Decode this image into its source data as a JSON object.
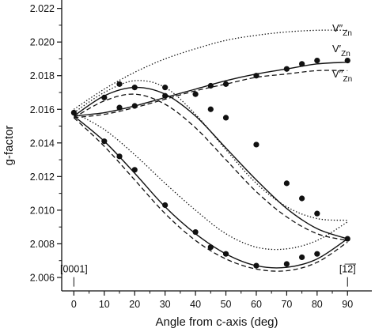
{
  "chart_data": {
    "type": "line",
    "title": "",
    "xlabel": "Angle from c-axis (deg)",
    "ylabel": "g-factor",
    "xlim": [
      -4,
      98
    ],
    "ylim": [
      2.0052,
      2.0225
    ],
    "x_ticks": [
      0,
      10,
      20,
      30,
      40,
      50,
      60,
      70,
      80,
      90
    ],
    "y_ticks": [
      2.006,
      2.008,
      2.01,
      2.012,
      2.014,
      2.016,
      2.018,
      2.02,
      2.022
    ],
    "y_tick_labels": [
      "2.006",
      "2.008",
      "2.010",
      "2.012",
      "2.014",
      "2.016",
      "2.018",
      "2.020",
      "2.022"
    ],
    "grid": false,
    "colors": {
      "line": "#111111",
      "background": "#ffffff"
    },
    "annotations": [
      {
        "text": "[0001]",
        "x": 0,
        "y": 2.0063
      },
      {
        "text": "[1̅2̅̅]",
        "x": 90,
        "y": 2.0063
      }
    ],
    "series": [
      {
        "name": "V″Zn",
        "style": "dotted",
        "branches": [
          {
            "x": [
              0,
              10,
              20,
              30,
              40,
              50,
              60,
              70,
              80,
              90
            ],
            "y": [
              2.016,
              2.0172,
              2.0182,
              2.019,
              2.0196,
              2.0201,
              2.0204,
              2.0206,
              2.0207,
              2.0207
            ]
          },
          {
            "x": [
              0,
              10,
              20,
              30,
              40,
              50,
              60,
              70,
              80,
              90
            ],
            "y": [
              2.0158,
              2.017,
              2.0177,
              2.0173,
              2.0157,
              2.0136,
              2.0116,
              2.0102,
              2.0095,
              2.0094
            ]
          },
          {
            "x": [
              0,
              10,
              20,
              30,
              40,
              50,
              60,
              70,
              80,
              90
            ],
            "y": [
              2.0158,
              2.0148,
              2.0133,
              2.0116,
              2.01,
              2.0086,
              2.0078,
              2.0077,
              2.0082,
              2.0093
            ]
          }
        ]
      },
      {
        "name": "V′Zn",
        "style": "solid",
        "branches": [
          {
            "x": [
              0,
              10,
              20,
              30,
              40,
              50,
              60,
              70,
              80,
              90
            ],
            "y": [
              2.0156,
              2.0158,
              2.0162,
              2.0167,
              2.0172,
              2.0177,
              2.0181,
              2.0184,
              2.0187,
              2.0188
            ]
          },
          {
            "x": [
              0,
              10,
              20,
              30,
              40,
              50,
              60,
              70,
              80,
              90
            ],
            "y": [
              2.0156,
              2.0168,
              2.0173,
              2.0169,
              2.0156,
              2.0137,
              2.0118,
              2.0101,
              2.0089,
              2.0083
            ]
          },
          {
            "x": [
              0,
              10,
              20,
              30,
              40,
              50,
              60,
              70,
              80,
              90
            ],
            "y": [
              2.0156,
              2.0141,
              2.0122,
              2.0102,
              2.0086,
              2.0074,
              2.0067,
              2.0066,
              2.0071,
              2.0083
            ]
          }
        ]
      },
      {
        "name": "V′′Zn",
        "style": "dashed",
        "branches": [
          {
            "x": [
              0,
              10,
              20,
              30,
              40,
              50,
              60,
              70,
              80,
              90
            ],
            "y": [
              2.0155,
              2.0157,
              2.0161,
              2.0166,
              2.0171,
              2.0175,
              2.0179,
              2.0181,
              2.0183,
              2.0183
            ]
          },
          {
            "x": [
              0,
              10,
              20,
              30,
              40,
              50,
              60,
              70,
              80,
              90
            ],
            "y": [
              2.0155,
              2.0165,
              2.0169,
              2.0163,
              2.0149,
              2.013,
              2.0111,
              2.0096,
              2.0086,
              2.0082
            ]
          },
          {
            "x": [
              0,
              10,
              20,
              30,
              40,
              50,
              60,
              70,
              80,
              90
            ],
            "y": [
              2.0155,
              2.0138,
              2.0118,
              2.0098,
              2.0082,
              2.0071,
              2.0065,
              2.0064,
              2.0069,
              2.0081
            ]
          }
        ]
      },
      {
        "name": "",
        "style": "markers",
        "points": [
          [
            0,
            2.0158
          ],
          [
            10,
            2.0141
          ],
          [
            15,
            2.0132
          ],
          [
            20,
            2.0124
          ],
          [
            30,
            2.0103
          ],
          [
            40,
            2.0087
          ],
          [
            45,
            2.0078
          ],
          [
            50,
            2.0074
          ],
          [
            60,
            2.0067
          ],
          [
            70,
            2.0068
          ],
          [
            75,
            2.0072
          ],
          [
            80,
            2.0074
          ],
          [
            90,
            2.0083
          ],
          [
            10,
            2.0167
          ],
          [
            15,
            2.0175
          ],
          [
            20,
            2.0173
          ],
          [
            30,
            2.0173
          ],
          [
            45,
            2.016
          ],
          [
            50,
            2.0155
          ],
          [
            60,
            2.0139
          ],
          [
            70,
            2.0116
          ],
          [
            75,
            2.0107
          ],
          [
            80,
            2.0098
          ],
          [
            15,
            2.0161
          ],
          [
            20,
            2.0162
          ],
          [
            30,
            2.0168
          ],
          [
            40,
            2.0169
          ],
          [
            45,
            2.0174
          ],
          [
            50,
            2.0175
          ],
          [
            60,
            2.018
          ],
          [
            70,
            2.0184
          ],
          [
            75,
            2.0187
          ],
          [
            80,
            2.0189
          ],
          [
            90,
            2.0189
          ]
        ]
      }
    ]
  }
}
